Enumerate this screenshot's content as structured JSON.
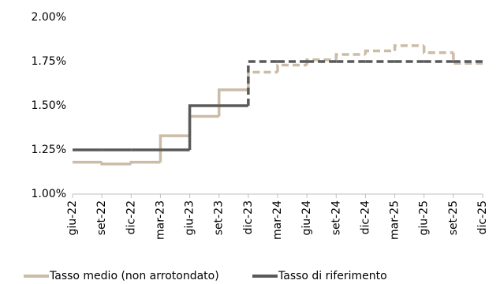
{
  "chart_data": {
    "type": "step-line",
    "categories": [
      "giu-22",
      "set-22",
      "dic-22",
      "mar-23",
      "giu-23",
      "set-23",
      "dic-23",
      "mar-24",
      "giu-24",
      "set-24",
      "dic-24",
      "mar-25",
      "giu-25",
      "set-25",
      "dic-25"
    ],
    "series": [
      {
        "name": "Tasso medio (non arrotondato)",
        "color": "#cbbca6",
        "values": [
          1.18,
          1.17,
          1.18,
          1.33,
          1.44,
          1.59,
          1.69,
          1.73,
          1.76,
          1.79,
          1.81,
          1.84,
          1.8,
          1.74,
          1.74
        ]
      },
      {
        "name": "Tasso di riferimento",
        "color": "#595959",
        "values": [
          1.25,
          1.25,
          1.25,
          1.25,
          1.5,
          1.5,
          1.75,
          1.75,
          1.75,
          1.75,
          1.75,
          1.75,
          1.75,
          1.75,
          1.75
        ]
      }
    ],
    "dashed_from_index": 6,
    "ylim": [
      1.0,
      2.0
    ],
    "yticks": [
      {
        "value": 1.0,
        "label": "1.00%"
      },
      {
        "value": 1.25,
        "label": "1.25%"
      },
      {
        "value": 1.5,
        "label": "1.50%"
      },
      {
        "value": 1.75,
        "label": "1.75%"
      },
      {
        "value": 2.0,
        "label": "2.00%"
      }
    ],
    "grid": false
  }
}
